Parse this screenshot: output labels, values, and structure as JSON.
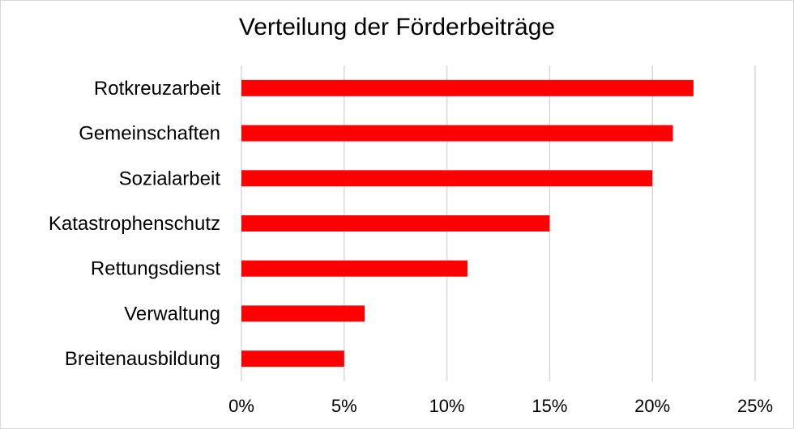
{
  "chart_data": {
    "type": "bar",
    "orientation": "horizontal",
    "title": "Verteilung der Förderbeiträge",
    "categories": [
      "Rotkreuzarbeit",
      "Gemeinschaften",
      "Sozialarbeit",
      "Katastrophenschutz",
      "Rettungsdienst",
      "Verwaltung",
      "Breitenausbildung"
    ],
    "values": [
      22,
      21,
      20,
      15,
      11,
      6,
      5
    ],
    "value_unit": "%",
    "xlim": [
      0,
      25
    ],
    "x_ticks": [
      "0%",
      "5%",
      "10%",
      "15%",
      "20%",
      "25%"
    ],
    "x_tick_values": [
      0,
      5,
      10,
      15,
      20,
      25
    ],
    "xlabel": "",
    "ylabel": "",
    "grid": "vertical",
    "legend": "none",
    "bar_color": "#ff0000",
    "grid_color": "#d9d9d9"
  }
}
